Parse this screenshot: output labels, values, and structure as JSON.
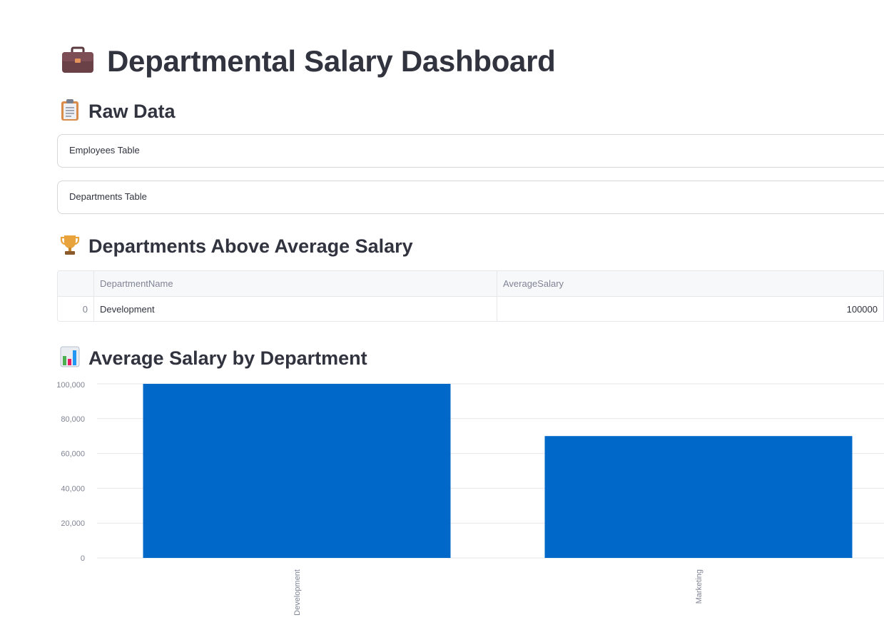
{
  "page": {
    "title": "Departmental Salary Dashboard",
    "title_icon": "briefcase-icon"
  },
  "raw_data": {
    "heading": "Raw Data",
    "icon": "clipboard-icon",
    "expanders": [
      {
        "label": "Employees Table"
      },
      {
        "label": "Departments Table"
      }
    ]
  },
  "above_average": {
    "heading": "Departments Above Average Salary",
    "icon": "trophy-icon",
    "columns": [
      "DepartmentName",
      "AverageSalary"
    ],
    "rows": [
      {
        "index": "0",
        "DepartmentName": "Development",
        "AverageSalary": "100000"
      }
    ]
  },
  "chart_section": {
    "heading": "Average Salary by Department",
    "icon": "bar-chart-icon"
  },
  "colors": {
    "bar": "#0068c9",
    "text": "#31333f",
    "muted": "#808495",
    "grid": "#e6e7ea"
  },
  "chart_data": {
    "type": "bar",
    "title": "Average Salary by Department",
    "categories": [
      "Development",
      "Marketing"
    ],
    "values": [
      100000,
      70000
    ],
    "xlabel": "",
    "ylabel": "",
    "ylim": [
      0,
      100000
    ],
    "yticks": [
      0,
      20000,
      40000,
      60000,
      80000,
      100000
    ],
    "ytick_labels": [
      "0",
      "20,000",
      "40,000",
      "60,000",
      "80,000",
      "100,000"
    ],
    "grid": true,
    "legend": "none"
  }
}
